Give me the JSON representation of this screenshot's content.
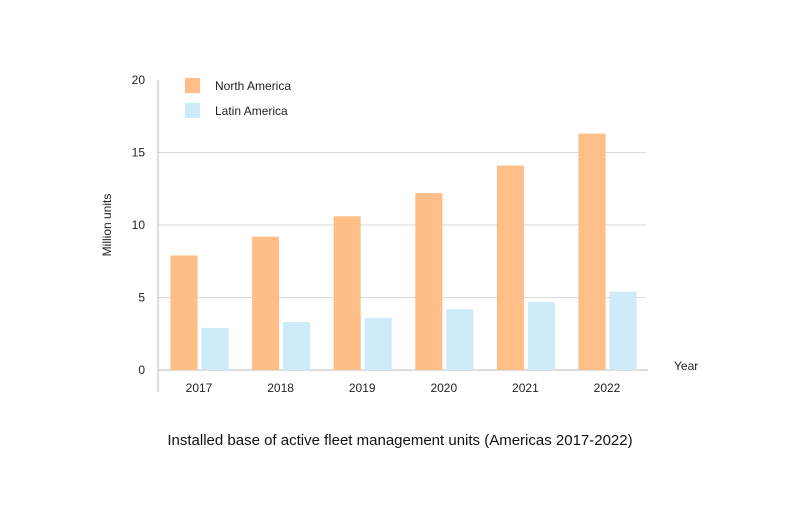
{
  "chart_data": {
    "type": "bar",
    "title": "Installed base of active fleet management units (Americas 2017-2022)",
    "xlabel": "Year",
    "ylabel": "Million units",
    "ylim": [
      0,
      20
    ],
    "yticks": [
      0,
      5,
      10,
      15,
      20
    ],
    "grid": true,
    "legend_position": "top-left",
    "categories": [
      "2017",
      "2018",
      "2019",
      "2020",
      "2021",
      "2022"
    ],
    "series": [
      {
        "name": "North America",
        "color": "#FFBE85",
        "values": [
          7.9,
          9.2,
          10.6,
          12.2,
          14.1,
          16.3
        ]
      },
      {
        "name": "Latin America",
        "color": "#CDEBF8",
        "values": [
          2.9,
          3.3,
          3.6,
          4.2,
          4.7,
          5.4
        ]
      }
    ]
  }
}
